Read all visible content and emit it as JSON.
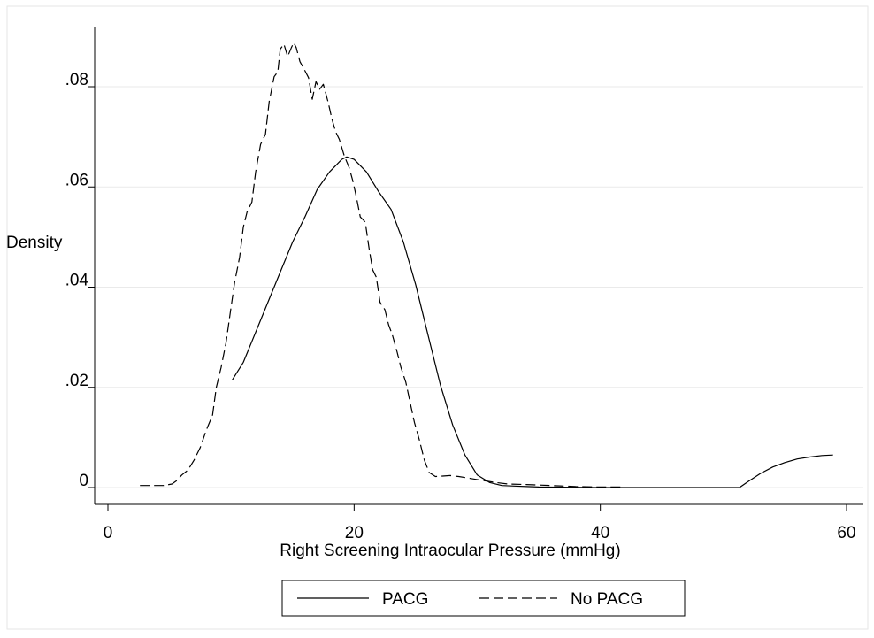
{
  "chart_data": {
    "type": "line",
    "title": "",
    "xlabel": "Right Screening Intraocular Pressure (mmHg)",
    "ylabel": "Density",
    "xlim": [
      -1,
      61.5
    ],
    "ylim": [
      -0.004,
      0.092
    ],
    "xticks": [
      0,
      20,
      40,
      60
    ],
    "xtick_labels": [
      "0",
      "20",
      "40",
      "60"
    ],
    "yticks": [
      0,
      0.02,
      0.04,
      0.06,
      0.08
    ],
    "ytick_labels": [
      "0",
      ".02",
      ".04",
      ".06",
      ".08"
    ],
    "grid": true,
    "legend_position": "bottom",
    "series": [
      {
        "name": "PACG",
        "dash": "solid",
        "points": [
          [
            10.1,
            0.0215
          ],
          [
            11,
            0.025
          ],
          [
            12,
            0.031
          ],
          [
            13,
            0.037
          ],
          [
            14,
            0.043
          ],
          [
            15,
            0.049
          ],
          [
            16,
            0.054
          ],
          [
            17,
            0.0595
          ],
          [
            18,
            0.063
          ],
          [
            19,
            0.0655
          ],
          [
            19.4,
            0.066
          ],
          [
            20,
            0.0655
          ],
          [
            21,
            0.063
          ],
          [
            22,
            0.059
          ],
          [
            23,
            0.0555
          ],
          [
            24,
            0.049
          ],
          [
            25,
            0.0405
          ],
          [
            26,
            0.0305
          ],
          [
            27,
            0.0205
          ],
          [
            28,
            0.0125
          ],
          [
            29,
            0.0065
          ],
          [
            30,
            0.0025
          ],
          [
            31,
            0.001
          ],
          [
            32,
            0.0004
          ],
          [
            33,
            0.0003
          ],
          [
            35,
            0.0001
          ],
          [
            40,
            0.0
          ],
          [
            45,
            0.0
          ],
          [
            51.3,
            0.0
          ],
          [
            52,
            0.0012
          ],
          [
            53,
            0.0028
          ],
          [
            54,
            0.0041
          ],
          [
            55,
            0.005
          ],
          [
            56,
            0.0057
          ],
          [
            57,
            0.0061
          ],
          [
            58,
            0.0064
          ],
          [
            58.9,
            0.0065
          ]
        ]
      },
      {
        "name": "No PACG",
        "dash": "dashed",
        "points": [
          [
            2.6,
            0.0004
          ],
          [
            3.5,
            0.0004
          ],
          [
            4.5,
            0.0004
          ],
          [
            5.2,
            0.0007
          ],
          [
            5.6,
            0.0014
          ],
          [
            6,
            0.0025
          ],
          [
            6.5,
            0.0035
          ],
          [
            7,
            0.0055
          ],
          [
            7.5,
            0.008
          ],
          [
            8,
            0.0115
          ],
          [
            8.5,
            0.0145
          ],
          [
            8.8,
            0.02
          ],
          [
            9.2,
            0.024
          ],
          [
            9.6,
            0.029
          ],
          [
            10,
            0.036
          ],
          [
            10.3,
            0.041
          ],
          [
            10.7,
            0.046
          ],
          [
            11,
            0.052
          ],
          [
            11.3,
            0.055
          ],
          [
            11.7,
            0.057
          ],
          [
            12,
            0.063
          ],
          [
            12.4,
            0.0685
          ],
          [
            12.8,
            0.0705
          ],
          [
            13.1,
            0.077
          ],
          [
            13.5,
            0.082
          ],
          [
            13.8,
            0.083
          ],
          [
            14.0,
            0.0875
          ],
          [
            14.3,
            0.0885
          ],
          [
            14.6,
            0.086
          ],
          [
            14.9,
            0.0878
          ],
          [
            15.1,
            0.0888
          ],
          [
            15.3,
            0.0878
          ],
          [
            15.6,
            0.085
          ],
          [
            16.0,
            0.0832
          ],
          [
            16.3,
            0.0818
          ],
          [
            16.6,
            0.0775
          ],
          [
            16.9,
            0.081
          ],
          [
            17.2,
            0.0795
          ],
          [
            17.5,
            0.0805
          ],
          [
            17.9,
            0.0768
          ],
          [
            18.2,
            0.0735
          ],
          [
            18.5,
            0.071
          ],
          [
            18.8,
            0.0695
          ],
          [
            19.2,
            0.0662
          ],
          [
            19.6,
            0.0638
          ],
          [
            19.9,
            0.0612
          ],
          [
            20.2,
            0.0578
          ],
          [
            20.5,
            0.054
          ],
          [
            20.9,
            0.053
          ],
          [
            21.2,
            0.048
          ],
          [
            21.5,
            0.0435
          ],
          [
            21.8,
            0.042
          ],
          [
            22.1,
            0.037
          ],
          [
            22.5,
            0.0355
          ],
          [
            22.8,
            0.0325
          ],
          [
            23.1,
            0.0305
          ],
          [
            23.5,
            0.027
          ],
          [
            23.8,
            0.024
          ],
          [
            24.2,
            0.021
          ],
          [
            24.5,
            0.0175
          ],
          [
            24.9,
            0.013
          ],
          [
            25.3,
            0.0095
          ],
          [
            25.7,
            0.0055
          ],
          [
            26.1,
            0.003
          ],
          [
            26.6,
            0.0022
          ],
          [
            27.2,
            0.0023
          ],
          [
            27.8,
            0.0024
          ],
          [
            28.5,
            0.0022
          ],
          [
            29.5,
            0.0018
          ],
          [
            30.5,
            0.0014
          ],
          [
            31.5,
            0.001
          ],
          [
            32.5,
            0.0007
          ],
          [
            34,
            0.0006
          ],
          [
            36,
            0.0004
          ],
          [
            38,
            0.0002
          ],
          [
            40,
            0.0001
          ],
          [
            42,
            0.0001
          ]
        ]
      }
    ]
  }
}
